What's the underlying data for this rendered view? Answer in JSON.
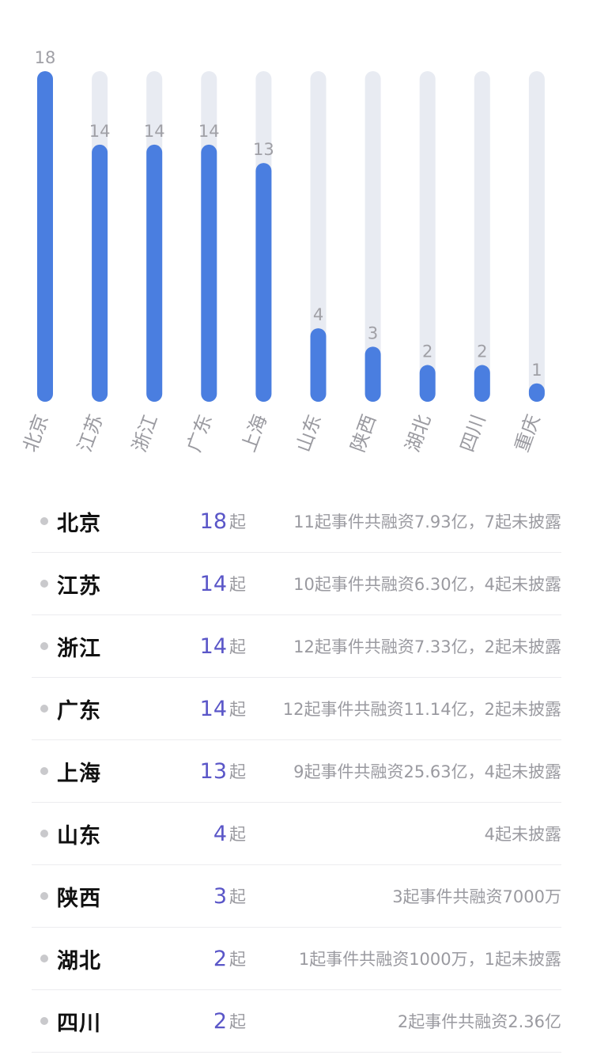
{
  "chart_data": {
    "type": "bar",
    "categories": [
      "北京",
      "江苏",
      "浙江",
      "广东",
      "上海",
      "山东",
      "陕西",
      "湖北",
      "四川",
      "重庆"
    ],
    "values": [
      18,
      14,
      14,
      14,
      13,
      4,
      3,
      2,
      2,
      1
    ],
    "ylim": [
      0,
      18
    ],
    "grid": false,
    "colors": {
      "bar": "#4a7ee0",
      "track": "#e8ebf2",
      "value_label": "#a0a0a6",
      "category_label": "#9a9aa0"
    }
  },
  "list": {
    "unit": "起",
    "rows": [
      {
        "name": "北京",
        "count": "18",
        "detail": "11起事件共融资7.93亿，7起未披露"
      },
      {
        "name": "江苏",
        "count": "14",
        "detail": "10起事件共融资6.30亿，4起未披露"
      },
      {
        "name": "浙江",
        "count": "14",
        "detail": "12起事件共融资7.33亿，2起未披露"
      },
      {
        "name": "广东",
        "count": "14",
        "detail": "12起事件共融资11.14亿，2起未披露"
      },
      {
        "name": "上海",
        "count": "13",
        "detail": "9起事件共融资25.63亿，4起未披露"
      },
      {
        "name": "山东",
        "count": "4",
        "detail": "4起未披露"
      },
      {
        "name": "陕西",
        "count": "3",
        "detail": "3起事件共融资7000万"
      },
      {
        "name": "湖北",
        "count": "2",
        "detail": "1起事件共融资1000万，1起未披露"
      },
      {
        "name": "四川",
        "count": "2",
        "detail": "2起事件共融资2.36亿"
      }
    ]
  }
}
